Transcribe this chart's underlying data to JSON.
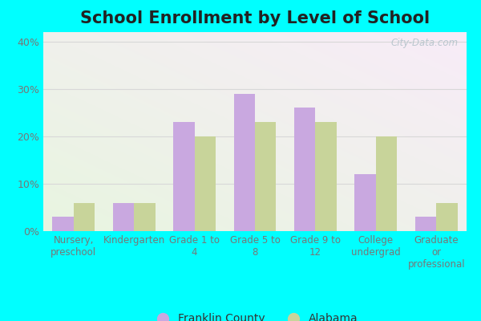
{
  "title": "School Enrollment by Level of School",
  "categories": [
    "Nursery,\npreschool",
    "Kindergarten",
    "Grade 1 to\n4",
    "Grade 5 to\n8",
    "Grade 9 to\n12",
    "College\nundergrad",
    "Graduate\nor\nprofessional"
  ],
  "franklin_county": [
    3,
    6,
    23,
    29,
    26,
    12,
    3
  ],
  "alabama": [
    6,
    6,
    20,
    23,
    23,
    20,
    6
  ],
  "franklin_color": "#c9a8e0",
  "alabama_color": "#c8d49a",
  "title_fontsize": 15,
  "ytick_labels": [
    "0%",
    "10%",
    "20%",
    "30%",
    "40%"
  ],
  "ytick_values": [
    0,
    10,
    20,
    30,
    40
  ],
  "ylim": [
    0,
    42
  ],
  "legend_franklin": "Franklin County",
  "legend_alabama": "Alabama",
  "watermark": "City-Data.com",
  "fig_bg_color": "#00ffff",
  "chart_bg_bottom": "#e8f0d8",
  "chart_bg_top": "#f0ecf8",
  "grid_color": "#d8d8d8",
  "tick_label_color": "#777777",
  "title_color": "#222222"
}
